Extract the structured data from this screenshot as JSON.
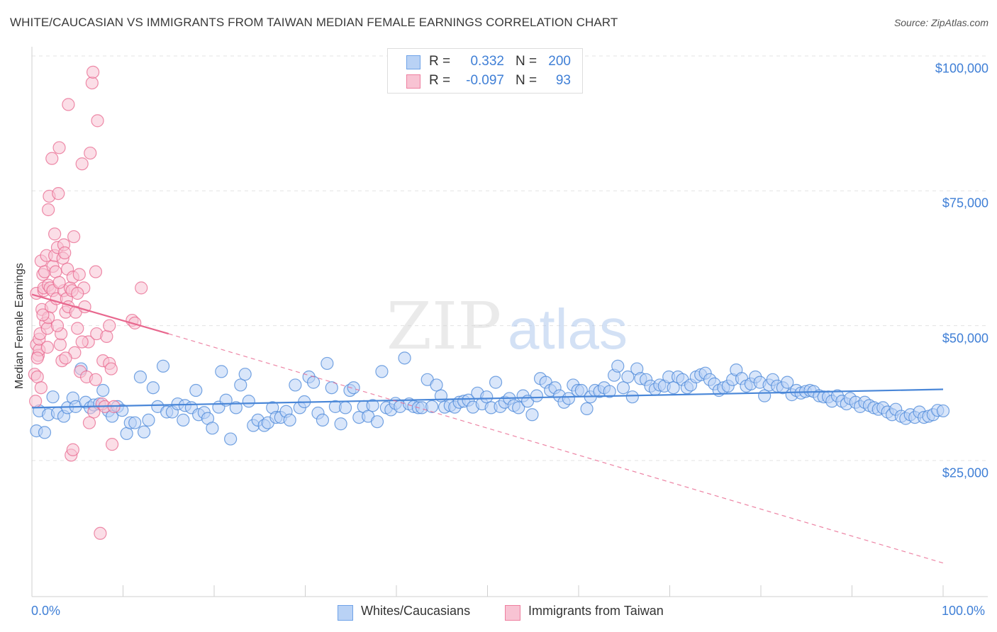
{
  "title": "WHITE/CAUCASIAN VS IMMIGRANTS FROM TAIWAN MEDIAN FEMALE EARNINGS CORRELATION CHART",
  "source": "Source: ZipAtlas.com",
  "watermark": {
    "zip": "ZIP",
    "atlas": "atlas"
  },
  "legend": {
    "rows": [
      {
        "r_label": "R =",
        "r_value": "0.332",
        "n_label": "N =",
        "n_value": "200",
        "color": "#6fa3e8",
        "fill": "#b9d2f5"
      },
      {
        "r_label": "R =",
        "r_value": "-0.097",
        "n_label": "N =",
        "n_value": "93",
        "color": "#ee7fa0",
        "fill": "#f8c3d3"
      }
    ]
  },
  "bottom_legend": [
    "Whites/Caucasians",
    "Immigrants from Taiwan"
  ],
  "chart_data": {
    "type": "scatter",
    "title": "WHITE/CAUCASIAN VS IMMIGRANTS FROM TAIWAN MEDIAN FEMALE EARNINGS CORRELATION CHART",
    "xlabel": "",
    "ylabel": "Median Female Earnings",
    "xlim": [
      0,
      100
    ],
    "ylim": [
      0,
      105000
    ],
    "x_tick_labels": [
      "0.0%",
      "100.0%"
    ],
    "y_ticks": [
      25000,
      50000,
      75000,
      100000
    ],
    "y_tick_labels": [
      "$25,000",
      "$50,000",
      "$75,000",
      "$100,000"
    ],
    "series": [
      {
        "name": "Whites/Caucasians",
        "color": "#4a87d8",
        "fill": "#b9d2f5",
        "trend": {
          "x": [
            0,
            100
          ],
          "y": [
            34800,
            38200
          ],
          "style": "solid"
        },
        "points": [
          [
            0.5,
            30500
          ],
          [
            0.8,
            34200
          ],
          [
            1.4,
            30200
          ],
          [
            1.8,
            33500
          ],
          [
            2.3,
            36800
          ],
          [
            2.8,
            33800
          ],
          [
            3.5,
            33200
          ],
          [
            3.9,
            34800
          ],
          [
            4.5,
            36600
          ],
          [
            4.8,
            35000
          ],
          [
            5.4,
            42000
          ],
          [
            5.9,
            35800
          ],
          [
            6.4,
            34800
          ],
          [
            6.8,
            35300
          ],
          [
            7.4,
            35500
          ],
          [
            7.8,
            38000
          ],
          [
            8.4,
            34200
          ],
          [
            8.8,
            33200
          ],
          [
            9.4,
            35000
          ],
          [
            9.9,
            34300
          ],
          [
            10.4,
            30000
          ],
          [
            10.8,
            32000
          ],
          [
            11.3,
            32000
          ],
          [
            11.9,
            40500
          ],
          [
            12.3,
            30300
          ],
          [
            12.8,
            32500
          ],
          [
            13.3,
            38500
          ],
          [
            13.8,
            35000
          ],
          [
            14.4,
            42500
          ],
          [
            14.8,
            34000
          ],
          [
            15.4,
            34000
          ],
          [
            16.0,
            35500
          ],
          [
            16.6,
            32500
          ],
          [
            16.8,
            35200
          ],
          [
            17.5,
            34800
          ],
          [
            18.0,
            38000
          ],
          [
            18.3,
            33500
          ],
          [
            18.9,
            33900
          ],
          [
            19.3,
            32800
          ],
          [
            19.8,
            31000
          ],
          [
            20.5,
            34900
          ],
          [
            20.8,
            41500
          ],
          [
            21.3,
            36200
          ],
          [
            21.8,
            29000
          ],
          [
            22.4,
            34800
          ],
          [
            22.9,
            39000
          ],
          [
            23.4,
            41000
          ],
          [
            23.8,
            36000
          ],
          [
            24.3,
            31500
          ],
          [
            24.8,
            32500
          ],
          [
            25.5,
            31500
          ],
          [
            25.9,
            32000
          ],
          [
            26.4,
            34800
          ],
          [
            26.8,
            33000
          ],
          [
            27.3,
            33000
          ],
          [
            27.9,
            34100
          ],
          [
            28.3,
            32500
          ],
          [
            28.9,
            39000
          ],
          [
            29.4,
            34800
          ],
          [
            29.9,
            35900
          ],
          [
            30.4,
            40500
          ],
          [
            30.9,
            39500
          ],
          [
            31.4,
            33800
          ],
          [
            31.9,
            32500
          ],
          [
            32.4,
            43000
          ],
          [
            32.9,
            38500
          ],
          [
            33.3,
            35000
          ],
          [
            33.9,
            31800
          ],
          [
            34.4,
            34800
          ],
          [
            34.9,
            38000
          ],
          [
            35.3,
            38500
          ],
          [
            35.9,
            33000
          ],
          [
            36.4,
            35000
          ],
          [
            36.9,
            33200
          ],
          [
            37.4,
            35200
          ],
          [
            37.9,
            32200
          ],
          [
            38.4,
            41500
          ],
          [
            38.9,
            34800
          ],
          [
            39.4,
            34400
          ],
          [
            39.9,
            35600
          ],
          [
            40.4,
            35000
          ],
          [
            40.9,
            44000
          ],
          [
            41.4,
            35500
          ],
          [
            41.9,
            35000
          ],
          [
            42.4,
            34800
          ],
          [
            42.8,
            34800
          ],
          [
            43.4,
            40000
          ],
          [
            43.9,
            35000
          ],
          [
            44.4,
            39000
          ],
          [
            44.9,
            37000
          ],
          [
            45.3,
            34900
          ],
          [
            45.9,
            35200
          ],
          [
            46.4,
            34900
          ],
          [
            46.9,
            35800
          ],
          [
            47.4,
            36000
          ],
          [
            47.9,
            36200
          ],
          [
            48.4,
            34900
          ],
          [
            48.9,
            37500
          ],
          [
            49.4,
            35500
          ],
          [
            49.9,
            36800
          ],
          [
            50.4,
            34800
          ],
          [
            50.9,
            39500
          ],
          [
            51.4,
            35000
          ],
          [
            51.9,
            35800
          ],
          [
            52.4,
            36500
          ],
          [
            52.9,
            35200
          ],
          [
            53.4,
            34800
          ],
          [
            53.9,
            37000
          ],
          [
            54.4,
            36000
          ],
          [
            54.9,
            33500
          ],
          [
            55.4,
            37000
          ],
          [
            55.8,
            40200
          ],
          [
            56.4,
            39500
          ],
          [
            56.9,
            38000
          ],
          [
            57.4,
            38500
          ],
          [
            57.9,
            37000
          ],
          [
            58.4,
            35800
          ],
          [
            58.9,
            36500
          ],
          [
            59.4,
            39000
          ],
          [
            59.9,
            38000
          ],
          [
            60.3,
            38000
          ],
          [
            60.9,
            34600
          ],
          [
            61.3,
            36800
          ],
          [
            61.8,
            38000
          ],
          [
            62.3,
            37800
          ],
          [
            62.8,
            38500
          ],
          [
            63.4,
            37800
          ],
          [
            63.9,
            40800
          ],
          [
            64.3,
            42500
          ],
          [
            64.9,
            38500
          ],
          [
            65.4,
            40500
          ],
          [
            65.9,
            36800
          ],
          [
            66.4,
            42000
          ],
          [
            66.8,
            40200
          ],
          [
            67.4,
            40000
          ],
          [
            67.9,
            38800
          ],
          [
            68.4,
            38200
          ],
          [
            68.9,
            39000
          ],
          [
            69.4,
            38800
          ],
          [
            69.9,
            40500
          ],
          [
            70.4,
            38500
          ],
          [
            70.9,
            40500
          ],
          [
            71.4,
            40000
          ],
          [
            71.9,
            38500
          ],
          [
            72.3,
            39000
          ],
          [
            72.9,
            40500
          ],
          [
            73.4,
            40900
          ],
          [
            73.9,
            41200
          ],
          [
            74.4,
            40000
          ],
          [
            74.9,
            39200
          ],
          [
            75.4,
            38000
          ],
          [
            75.9,
            38500
          ],
          [
            76.4,
            38800
          ],
          [
            76.9,
            40000
          ],
          [
            77.3,
            41800
          ],
          [
            77.9,
            40200
          ],
          [
            78.4,
            38800
          ],
          [
            78.9,
            39200
          ],
          [
            79.4,
            40500
          ],
          [
            79.9,
            39500
          ],
          [
            80.4,
            37000
          ],
          [
            80.9,
            39000
          ],
          [
            81.3,
            40000
          ],
          [
            81.8,
            38800
          ],
          [
            82.4,
            38500
          ],
          [
            82.9,
            39500
          ],
          [
            83.4,
            37200
          ],
          [
            83.9,
            38000
          ],
          [
            84.4,
            37500
          ],
          [
            84.9,
            37800
          ],
          [
            85.4,
            38000
          ],
          [
            85.8,
            37800
          ],
          [
            86.4,
            37000
          ],
          [
            86.9,
            36800
          ],
          [
            87.4,
            36800
          ],
          [
            87.8,
            36000
          ],
          [
            88.4,
            37000
          ],
          [
            88.9,
            36000
          ],
          [
            89.4,
            35500
          ],
          [
            89.8,
            36500
          ],
          [
            90.4,
            35800
          ],
          [
            90.9,
            35000
          ],
          [
            91.4,
            35800
          ],
          [
            91.9,
            35200
          ],
          [
            92.4,
            34800
          ],
          [
            92.9,
            34500
          ],
          [
            93.4,
            34800
          ],
          [
            93.9,
            34000
          ],
          [
            94.4,
            33500
          ],
          [
            94.8,
            34500
          ],
          [
            95.4,
            33200
          ],
          [
            95.9,
            32800
          ],
          [
            96.4,
            33500
          ],
          [
            96.9,
            33000
          ],
          [
            97.4,
            34000
          ],
          [
            97.9,
            33000
          ],
          [
            98.4,
            33200
          ],
          [
            98.9,
            33500
          ],
          [
            99.4,
            34300
          ],
          [
            100.0,
            34200
          ]
        ]
      },
      {
        "name": "Immigrants from Taiwan",
        "color": "#e8678e",
        "fill": "#f8c3d3",
        "trend": {
          "x": [
            0,
            15
          ],
          "y": [
            55800,
            48500
          ],
          "style": "solid",
          "extended_x": [
            15,
            100
          ],
          "extended_y": [
            48500,
            6000
          ],
          "extended_style": "dashed"
        },
        "points": [
          [
            0.3,
            41000
          ],
          [
            0.4,
            36000
          ],
          [
            0.5,
            56000
          ],
          [
            0.5,
            46500
          ],
          [
            0.6,
            40500
          ],
          [
            0.7,
            44500
          ],
          [
            0.8,
            45500
          ],
          [
            0.8,
            47500
          ],
          [
            0.9,
            48500
          ],
          [
            1.0,
            38500
          ],
          [
            1.0,
            62000
          ],
          [
            1.1,
            53000
          ],
          [
            1.2,
            59500
          ],
          [
            1.3,
            56500
          ],
          [
            1.3,
            57000
          ],
          [
            1.4,
            60000
          ],
          [
            1.5,
            50500
          ],
          [
            1.6,
            63000
          ],
          [
            1.7,
            46000
          ],
          [
            1.7,
            49500
          ],
          [
            1.8,
            57500
          ],
          [
            1.8,
            71500
          ],
          [
            1.9,
            74000
          ],
          [
            2.0,
            57000
          ],
          [
            2.1,
            53500
          ],
          [
            2.2,
            81000
          ],
          [
            2.3,
            61000
          ],
          [
            2.3,
            56500
          ],
          [
            2.5,
            67000
          ],
          [
            2.5,
            63000
          ],
          [
            2.6,
            60000
          ],
          [
            2.7,
            55000
          ],
          [
            2.8,
            64500
          ],
          [
            2.9,
            74500
          ],
          [
            3.0,
            83000
          ],
          [
            3.1,
            46500
          ],
          [
            3.2,
            48500
          ],
          [
            3.3,
            43500
          ],
          [
            3.4,
            62500
          ],
          [
            3.5,
            56500
          ],
          [
            3.5,
            65000
          ],
          [
            3.6,
            63500
          ],
          [
            3.7,
            52500
          ],
          [
            3.8,
            55000
          ],
          [
            3.9,
            60500
          ],
          [
            4.0,
            91000
          ],
          [
            4.0,
            53500
          ],
          [
            4.2,
            57000
          ],
          [
            4.3,
            26000
          ],
          [
            4.4,
            56500
          ],
          [
            4.5,
            59000
          ],
          [
            4.6,
            66500
          ],
          [
            4.7,
            45000
          ],
          [
            4.8,
            52500
          ],
          [
            5.0,
            49500
          ],
          [
            5.2,
            59500
          ],
          [
            5.3,
            41500
          ],
          [
            5.5,
            80000
          ],
          [
            5.7,
            57000
          ],
          [
            5.8,
            53500
          ],
          [
            6.0,
            40500
          ],
          [
            6.2,
            47000
          ],
          [
            6.4,
            82000
          ],
          [
            6.6,
            95000
          ],
          [
            6.7,
            97000
          ],
          [
            6.8,
            34000
          ],
          [
            7.0,
            40000
          ],
          [
            7.1,
            48500
          ],
          [
            7.2,
            88000
          ],
          [
            7.5,
            11500
          ],
          [
            7.7,
            35500
          ],
          [
            7.8,
            43500
          ],
          [
            8.0,
            35000
          ],
          [
            8.2,
            48000
          ],
          [
            8.5,
            43000
          ],
          [
            8.7,
            42000
          ],
          [
            8.8,
            28000
          ],
          [
            9.0,
            35000
          ],
          [
            1.8,
            51500
          ],
          [
            2.8,
            50000
          ],
          [
            3.0,
            58000
          ],
          [
            3.7,
            44000
          ],
          [
            4.5,
            27000
          ],
          [
            5.0,
            56000
          ],
          [
            5.5,
            47000
          ],
          [
            6.3,
            32000
          ],
          [
            7.0,
            60000
          ],
          [
            8.5,
            50000
          ],
          [
            11.0,
            51000
          ],
          [
            11.3,
            50500
          ],
          [
            12.0,
            57000
          ],
          [
            0.6,
            44000
          ],
          [
            1.2,
            52000
          ]
        ]
      }
    ]
  }
}
